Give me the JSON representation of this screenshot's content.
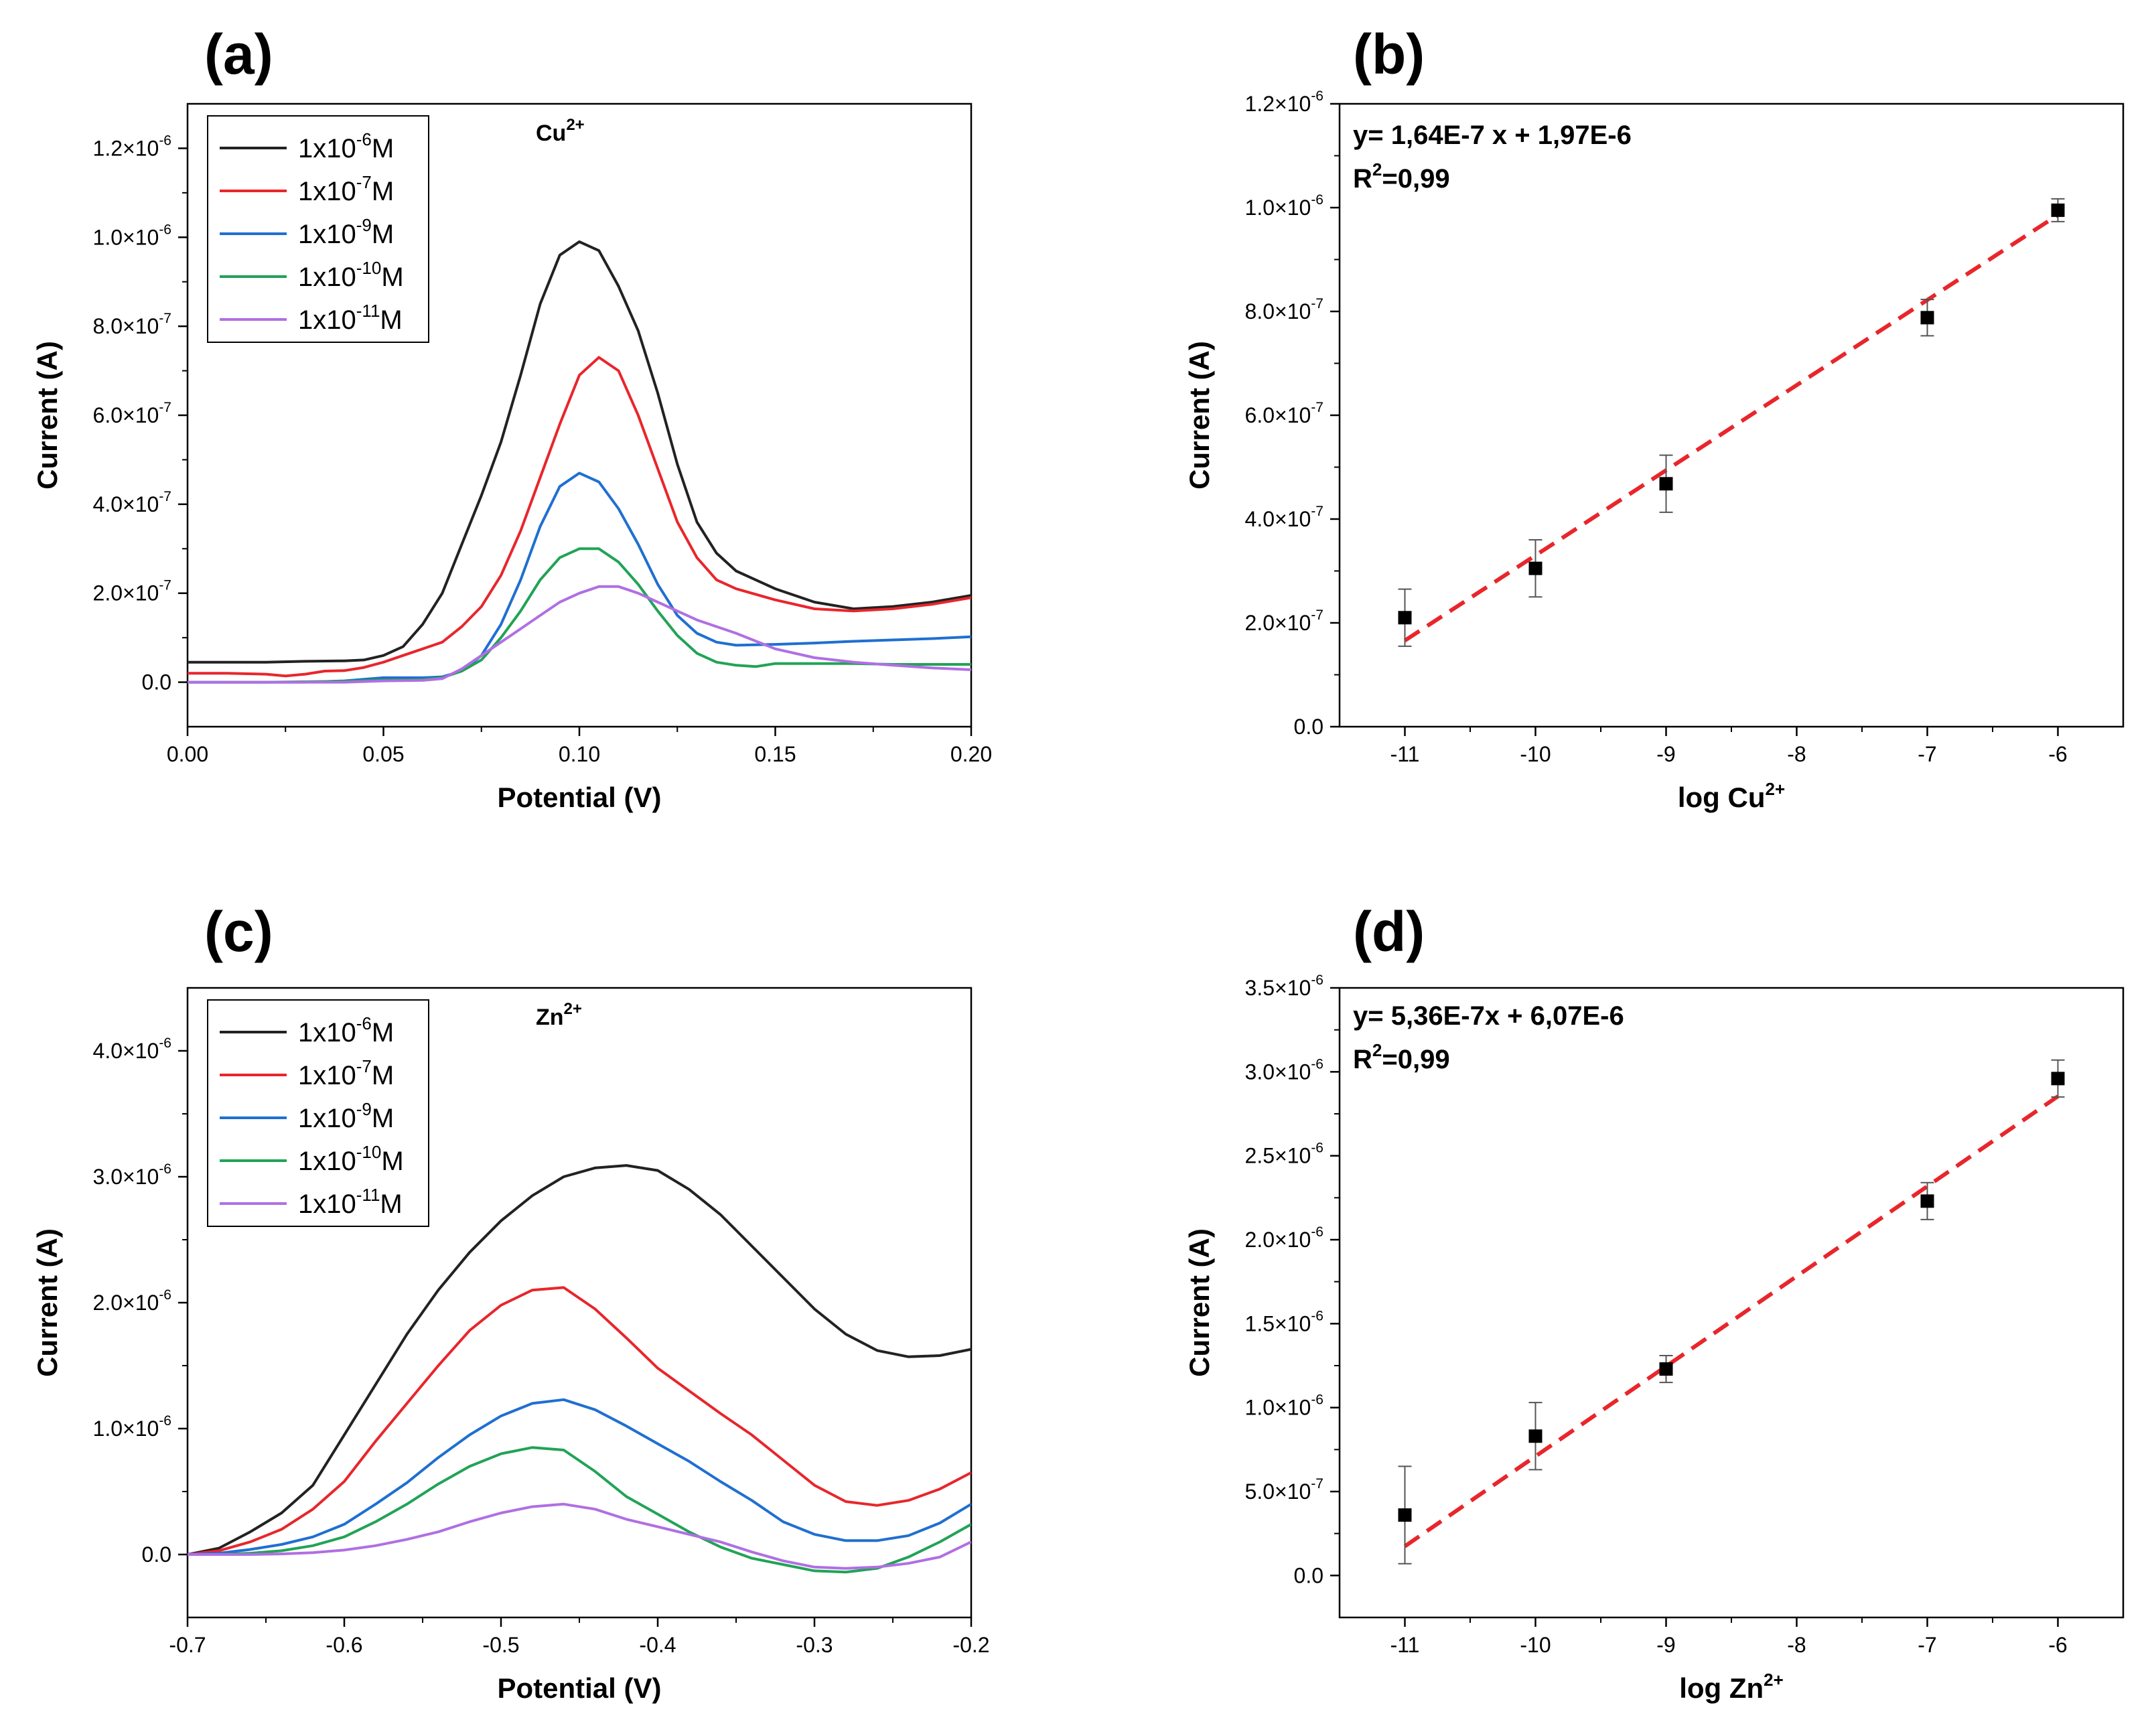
{
  "chart_data": [
    {
      "id": "a",
      "type": "line",
      "panel_label": "(a)",
      "title": "",
      "ion_label": "Cu",
      "ion_label_sup": "2+",
      "xlabel": "Potential (V)",
      "ylabel": "Current (A)",
      "xlim": [
        0.0,
        0.2
      ],
      "ylim": [
        -1e-07,
        1.3e-06
      ],
      "x_ticks": [
        0.0,
        0.05,
        0.1,
        0.15,
        0.2
      ],
      "x_tick_labels": [
        "0.00",
        "0.05",
        "0.10",
        "0.15",
        "0.20"
      ],
      "y_ticks": [
        0,
        2e-07,
        4e-07,
        6e-07,
        8e-07,
        1e-06,
        1.2e-06
      ],
      "y_tick_labels": [
        {
          "base": "0.0",
          "exp": ""
        },
        {
          "base": "2.0×10",
          "exp": "-7"
        },
        {
          "base": "4.0×10",
          "exp": "-7"
        },
        {
          "base": "6.0×10",
          "exp": "-7"
        },
        {
          "base": "8.0×10",
          "exp": "-7"
        },
        {
          "base": "1.0×10",
          "exp": "-6"
        },
        {
          "base": "1.2×10",
          "exp": "-6"
        }
      ],
      "legend_position": "top-left",
      "series": [
        {
          "name": "1x10-6M",
          "label_base": "1x10",
          "label_exp": "-6",
          "label_unit": "M",
          "color": "#222222",
          "x": [
            0,
            0.01,
            0.02,
            0.03,
            0.04,
            0.045,
            0.05,
            0.055,
            0.06,
            0.065,
            0.07,
            0.075,
            0.08,
            0.085,
            0.09,
            0.095,
            0.1,
            0.105,
            0.11,
            0.115,
            0.12,
            0.125,
            0.13,
            0.135,
            0.14,
            0.15,
            0.16,
            0.17,
            0.18,
            0.19,
            0.2
          ],
          "y": [
            4.5e-08,
            4.5e-08,
            4.5e-08,
            4.7e-08,
            4.8e-08,
            5e-08,
            6e-08,
            8e-08,
            1.3e-07,
            2e-07,
            3.1e-07,
            4.2e-07,
            5.4e-07,
            6.9e-07,
            8.5e-07,
            9.6e-07,
            9.9e-07,
            9.7e-07,
            8.9e-07,
            7.9e-07,
            6.5e-07,
            4.9e-07,
            3.6e-07,
            2.9e-07,
            2.5e-07,
            2.1e-07,
            1.8e-07,
            1.65e-07,
            1.7e-07,
            1.8e-07,
            1.95e-07
          ]
        },
        {
          "name": "1x10-7M",
          "label_base": "1x10",
          "label_exp": "-7",
          "label_unit": "M",
          "color": "#e8262b",
          "x": [
            0,
            0.01,
            0.02,
            0.025,
            0.03,
            0.035,
            0.04,
            0.045,
            0.05,
            0.055,
            0.06,
            0.065,
            0.07,
            0.075,
            0.08,
            0.085,
            0.09,
            0.095,
            0.1,
            0.105,
            0.11,
            0.115,
            0.12,
            0.125,
            0.13,
            0.135,
            0.14,
            0.15,
            0.16,
            0.17,
            0.18,
            0.19,
            0.2
          ],
          "y": [
            2e-08,
            2e-08,
            1.8e-08,
            1.4e-08,
            1.8e-08,
            2.5e-08,
            2.6e-08,
            3.3e-08,
            4.5e-08,
            6e-08,
            7.5e-08,
            9e-08,
            1.25e-07,
            1.7e-07,
            2.4e-07,
            3.4e-07,
            4.6e-07,
            5.8e-07,
            6.9e-07,
            7.3e-07,
            7e-07,
            6e-07,
            4.8e-07,
            3.6e-07,
            2.8e-07,
            2.3e-07,
            2.1e-07,
            1.85e-07,
            1.65e-07,
            1.6e-07,
            1.65e-07,
            1.75e-07,
            1.9e-07
          ]
        },
        {
          "name": "1x10-9M",
          "label_base": "1x10",
          "label_exp": "-9",
          "label_unit": "M",
          "color": "#1f6fd1",
          "x": [
            0,
            0.01,
            0.02,
            0.03,
            0.04,
            0.05,
            0.055,
            0.06,
            0.065,
            0.07,
            0.075,
            0.08,
            0.085,
            0.09,
            0.095,
            0.1,
            0.105,
            0.11,
            0.115,
            0.12,
            0.125,
            0.13,
            0.135,
            0.14,
            0.15,
            0.16,
            0.17,
            0.18,
            0.19,
            0.2
          ],
          "y": [
            0,
            0,
            0,
            0,
            3e-09,
            1e-08,
            1e-08,
            1e-08,
            1.2e-08,
            2.5e-08,
            6e-08,
            1.3e-07,
            2.3e-07,
            3.5e-07,
            4.4e-07,
            4.7e-07,
            4.5e-07,
            3.9e-07,
            3.1e-07,
            2.2e-07,
            1.5e-07,
            1.1e-07,
            9e-08,
            8.3e-08,
            8.5e-08,
            8.8e-08,
            9.2e-08,
            9.5e-08,
            9.8e-08,
            1.02e-07
          ]
        },
        {
          "name": "1x10-10M",
          "label_base": "1x10",
          "label_exp": "-10",
          "label_unit": "M",
          "color": "#21a356",
          "x": [
            0,
            0.02,
            0.04,
            0.05,
            0.055,
            0.06,
            0.065,
            0.07,
            0.075,
            0.08,
            0.085,
            0.09,
            0.095,
            0.1,
            0.105,
            0.11,
            0.115,
            0.12,
            0.125,
            0.13,
            0.135,
            0.14,
            0.145,
            0.15,
            0.16,
            0.17,
            0.18,
            0.19,
            0.2
          ],
          "y": [
            0,
            0,
            2e-09,
            5e-09,
            5e-09,
            6e-09,
            1e-08,
            2.5e-08,
            5e-08,
            1e-07,
            1.6e-07,
            2.3e-07,
            2.8e-07,
            3e-07,
            3e-07,
            2.7e-07,
            2.2e-07,
            1.6e-07,
            1.05e-07,
            6.5e-08,
            4.5e-08,
            3.8e-08,
            3.5e-08,
            4.2e-08,
            4.2e-08,
            4.2e-08,
            4e-08,
            4e-08,
            4e-08
          ]
        },
        {
          "name": "1x10-11M",
          "label_base": "1x10",
          "label_exp": "-11",
          "label_unit": "M",
          "color": "#b06fe3",
          "x": [
            0,
            0.02,
            0.04,
            0.05,
            0.06,
            0.065,
            0.07,
            0.075,
            0.08,
            0.085,
            0.09,
            0.095,
            0.1,
            0.105,
            0.11,
            0.115,
            0.12,
            0.125,
            0.13,
            0.14,
            0.15,
            0.16,
            0.17,
            0.18,
            0.19,
            0.2
          ],
          "y": [
            0,
            0,
            0,
            3e-09,
            4e-09,
            8e-09,
            3e-08,
            6e-08,
            9e-08,
            1.2e-07,
            1.5e-07,
            1.8e-07,
            2e-07,
            2.15e-07,
            2.15e-07,
            2e-07,
            1.8e-07,
            1.6e-07,
            1.4e-07,
            1.1e-07,
            7.5e-08,
            5.5e-08,
            4.5e-08,
            3.8e-08,
            3.2e-08,
            2.8e-08
          ]
        }
      ]
    },
    {
      "id": "b",
      "type": "scatter",
      "panel_label": "(b)",
      "title": "",
      "xlabel": "log Cu",
      "xlabel_sup": "2+",
      "ylabel": "Current (A)",
      "xlim": [
        -11.5,
        -5.5
      ],
      "ylim": [
        0,
        1.2e-06
      ],
      "x_ticks": [
        -11,
        -10,
        -9,
        -8,
        -7,
        -6
      ],
      "x_tick_labels": [
        "-11",
        "-10",
        "-9",
        "-8",
        "-7",
        "-6"
      ],
      "y_ticks": [
        0,
        2e-07,
        4e-07,
        6e-07,
        8e-07,
        1e-06,
        1.2e-06
      ],
      "y_tick_labels": [
        {
          "base": "0.0",
          "exp": ""
        },
        {
          "base": "2.0×10",
          "exp": "-7"
        },
        {
          "base": "4.0×10",
          "exp": "-7"
        },
        {
          "base": "6.0×10",
          "exp": "-7"
        },
        {
          "base": "8.0×10",
          "exp": "-7"
        },
        {
          "base": "1.0×10",
          "exp": "-6"
        },
        {
          "base": "1.2×10",
          "exp": "-6"
        }
      ],
      "equation": "y= 1,64E-7 x + 1,97E-6",
      "r2_base": "R",
      "r2_sup": "2",
      "r2_value": "=0,99",
      "fit": {
        "slope": 1.64e-07,
        "intercept": 1.97e-06,
        "x_range": [
          -11,
          -6
        ],
        "color": "#e8262b"
      },
      "points": {
        "x": [
          -11,
          -10,
          -9,
          -7,
          -6
        ],
        "y": [
          2.1e-07,
          3.05e-07,
          4.68e-07,
          7.88e-07,
          9.95e-07
        ],
        "err": [
          5.5e-08,
          5.5e-08,
          5.5e-08,
          3.5e-08,
          2.2e-08
        ]
      }
    },
    {
      "id": "c",
      "type": "line",
      "panel_label": "(c)",
      "title": "",
      "ion_label": "Zn",
      "ion_label_sup": "2+",
      "xlabel": "Potential (V)",
      "ylabel": "Current (A)",
      "xlim": [
        -0.7,
        -0.2
      ],
      "ylim": [
        -5e-07,
        4.5e-06
      ],
      "x_ticks": [
        -0.7,
        -0.6,
        -0.5,
        -0.4,
        -0.3,
        -0.2
      ],
      "x_tick_labels": [
        "-0.7",
        "-0.6",
        "-0.5",
        "-0.4",
        "-0.3",
        "-0.2"
      ],
      "y_ticks": [
        0,
        1e-06,
        2e-06,
        3e-06,
        4e-06
      ],
      "y_tick_labels": [
        {
          "base": "0.0",
          "exp": ""
        },
        {
          "base": "1.0×10",
          "exp": "-6"
        },
        {
          "base": "2.0×10",
          "exp": "-6"
        },
        {
          "base": "3.0×10",
          "exp": "-6"
        },
        {
          "base": "4.0×10",
          "exp": "-6"
        }
      ],
      "legend_position": "top-left",
      "series": [
        {
          "name": "1x10-6M",
          "label_base": "1x10",
          "label_exp": "-6",
          "label_unit": "M",
          "color": "#222222",
          "x": [
            -0.7,
            -0.68,
            -0.66,
            -0.64,
            -0.62,
            -0.6,
            -0.58,
            -0.56,
            -0.54,
            -0.52,
            -0.5,
            -0.48,
            -0.46,
            -0.44,
            -0.42,
            -0.4,
            -0.38,
            -0.36,
            -0.34,
            -0.32,
            -0.3,
            -0.28,
            -0.26,
            -0.24,
            -0.22,
            -0.2
          ],
          "y": [
            0,
            5e-08,
            1.8e-07,
            3.3e-07,
            5.5e-07,
            9.5e-07,
            1.35e-06,
            1.75e-06,
            2.1e-06,
            2.4e-06,
            2.65e-06,
            2.85e-06,
            3e-06,
            3.07e-06,
            3.09e-06,
            3.05e-06,
            2.9e-06,
            2.7e-06,
            2.45e-06,
            2.2e-06,
            1.95e-06,
            1.75e-06,
            1.62e-06,
            1.57e-06,
            1.58e-06,
            1.63e-06
          ]
        },
        {
          "name": "1x10-7M",
          "label_base": "1x10",
          "label_exp": "-7",
          "label_unit": "M",
          "color": "#e8262b",
          "x": [
            -0.7,
            -0.68,
            -0.66,
            -0.64,
            -0.62,
            -0.6,
            -0.58,
            -0.56,
            -0.54,
            -0.52,
            -0.5,
            -0.48,
            -0.46,
            -0.44,
            -0.42,
            -0.4,
            -0.38,
            -0.36,
            -0.34,
            -0.32,
            -0.3,
            -0.28,
            -0.26,
            -0.24,
            -0.22,
            -0.2
          ],
          "y": [
            0,
            3e-08,
            1e-07,
            2e-07,
            3.6e-07,
            5.8e-07,
            9e-07,
            1.2e-06,
            1.5e-06,
            1.78e-06,
            1.98e-06,
            2.1e-06,
            2.12e-06,
            1.95e-06,
            1.72e-06,
            1.48e-06,
            1.3e-06,
            1.12e-06,
            9.5e-07,
            7.5e-07,
            5.5e-07,
            4.2e-07,
            3.9e-07,
            4.3e-07,
            5.2e-07,
            6.5e-07
          ]
        },
        {
          "name": "1x10-9M",
          "label_base": "1x10",
          "label_exp": "-9",
          "label_unit": "M",
          "color": "#1f6fd1",
          "x": [
            -0.7,
            -0.68,
            -0.66,
            -0.64,
            -0.62,
            -0.6,
            -0.58,
            -0.56,
            -0.54,
            -0.52,
            -0.5,
            -0.48,
            -0.46,
            -0.44,
            -0.42,
            -0.4,
            -0.38,
            -0.36,
            -0.34,
            -0.32,
            -0.3,
            -0.28,
            -0.26,
            -0.24,
            -0.22,
            -0.2
          ],
          "y": [
            0,
            1e-08,
            4e-08,
            8e-08,
            1.4e-07,
            2.4e-07,
            4e-07,
            5.7e-07,
            7.7e-07,
            9.5e-07,
            1.1e-06,
            1.2e-06,
            1.23e-06,
            1.15e-06,
            1.02e-06,
            8.8e-07,
            7.4e-07,
            5.8e-07,
            4.3e-07,
            2.6e-07,
            1.6e-07,
            1.1e-07,
            1.1e-07,
            1.5e-07,
            2.5e-07,
            4e-07
          ]
        },
        {
          "name": "1x10-10M",
          "label_base": "1x10",
          "label_exp": "-10",
          "label_unit": "M",
          "color": "#21a356",
          "x": [
            -0.7,
            -0.68,
            -0.66,
            -0.64,
            -0.62,
            -0.6,
            -0.58,
            -0.56,
            -0.54,
            -0.52,
            -0.5,
            -0.48,
            -0.46,
            -0.44,
            -0.42,
            -0.4,
            -0.38,
            -0.36,
            -0.34,
            -0.32,
            -0.3,
            -0.28,
            -0.26,
            -0.24,
            -0.22,
            -0.2
          ],
          "y": [
            0,
            0,
            1e-08,
            3e-08,
            7e-08,
            1.4e-07,
            2.6e-07,
            4e-07,
            5.6e-07,
            7e-07,
            8e-07,
            8.5e-07,
            8.3e-07,
            6.6e-07,
            4.6e-07,
            3.2e-07,
            1.8e-07,
            6e-08,
            -3e-08,
            -8e-08,
            -1.3e-07,
            -1.4e-07,
            -1.1e-07,
            -2e-08,
            1e-07,
            2.4e-07
          ]
        },
        {
          "name": "1x10-11M",
          "label_base": "1x10",
          "label_exp": "-11",
          "label_unit": "M",
          "color": "#b06fe3",
          "x": [
            -0.7,
            -0.68,
            -0.66,
            -0.64,
            -0.62,
            -0.6,
            -0.58,
            -0.56,
            -0.54,
            -0.52,
            -0.5,
            -0.48,
            -0.46,
            -0.44,
            -0.42,
            -0.4,
            -0.38,
            -0.36,
            -0.34,
            -0.32,
            -0.3,
            -0.28,
            -0.26,
            -0.24,
            -0.22,
            -0.2
          ],
          "y": [
            0,
            0,
            0,
            5e-09,
            1.5e-08,
            3.5e-08,
            7e-08,
            1.2e-07,
            1.8e-07,
            2.6e-07,
            3.3e-07,
            3.8e-07,
            4e-07,
            3.6e-07,
            2.8e-07,
            2.2e-07,
            1.6e-07,
            1e-07,
            2e-08,
            -5e-08,
            -1e-07,
            -1.1e-07,
            -1e-07,
            -7e-08,
            -2e-08,
            1e-07
          ]
        }
      ]
    },
    {
      "id": "d",
      "type": "scatter",
      "panel_label": "(d)",
      "title": "",
      "xlabel": "log Zn",
      "xlabel_sup": "2+",
      "ylabel": "Current (A)",
      "xlim": [
        -11.5,
        -5.5
      ],
      "ylim": [
        -2.5e-07,
        3.5e-06
      ],
      "x_ticks": [
        -11,
        -10,
        -9,
        -8,
        -7,
        -6
      ],
      "x_tick_labels": [
        "-11",
        "-10",
        "-9",
        "-8",
        "-7",
        "-6"
      ],
      "y_ticks": [
        0,
        5e-07,
        1e-06,
        1.5e-06,
        2e-06,
        2.5e-06,
        3e-06,
        3.5e-06
      ],
      "y_tick_labels": [
        {
          "base": "0.0",
          "exp": ""
        },
        {
          "base": "5.0×10",
          "exp": "-7"
        },
        {
          "base": "1.0×10",
          "exp": "-6"
        },
        {
          "base": "1.5×10",
          "exp": "-6"
        },
        {
          "base": "2.0×10",
          "exp": "-6"
        },
        {
          "base": "2.5×10",
          "exp": "-6"
        },
        {
          "base": "3.0×10",
          "exp": "-6"
        },
        {
          "base": "3.5×10",
          "exp": "-6"
        }
      ],
      "equation": "y= 5,36E-7x + 6,07E-6",
      "r2_base": "R",
      "r2_sup": "2",
      "r2_value": "=0,99",
      "fit": {
        "slope": 5.36e-07,
        "intercept": 6.07e-06,
        "x_range": [
          -11,
          -6
        ],
        "color": "#e8262b"
      },
      "points": {
        "x": [
          -11,
          -10,
          -9,
          -7,
          -6
        ],
        "y": [
          3.6e-07,
          8.3e-07,
          1.23e-06,
          2.23e-06,
          2.96e-06
        ],
        "err": [
          2.9e-07,
          2e-07,
          8e-08,
          1.1e-07,
          1.1e-07
        ]
      }
    }
  ]
}
